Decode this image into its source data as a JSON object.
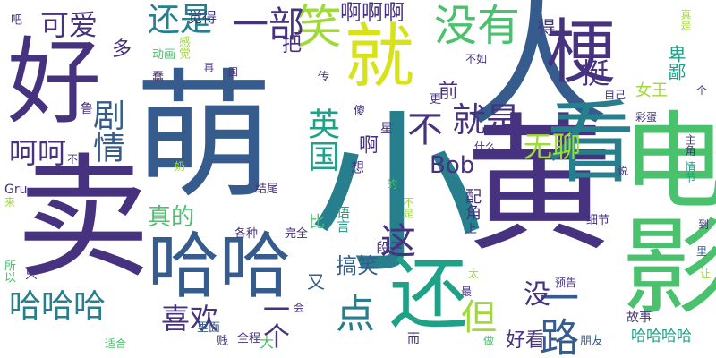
{
  "palette": {
    "p1": "#440154",
    "p2": "#46327e",
    "p3": "#365c8d",
    "p4": "#277f8e",
    "p5": "#1fa187",
    "p6": "#4ac16d",
    "p7": "#a0da39",
    "p8": "#d8e219"
  },
  "words": [
    {
      "text": "萌",
      "color": "#365c8d"
    },
    {
      "text": "小",
      "color": "#277f8e"
    },
    {
      "text": "黄",
      "color": "#46327e"
    },
    {
      "text": "人",
      "color": "#365c8d"
    },
    {
      "text": "卖",
      "color": "#46327e"
    },
    {
      "text": "好",
      "color": "#46327e"
    },
    {
      "text": "就",
      "color": "#d8e219"
    },
    {
      "text": "看",
      "color": "#277f8e"
    },
    {
      "text": "电影",
      "color": "#4ac16d"
    },
    {
      "text": "哈哈",
      "color": "#365c8d"
    },
    {
      "text": "还",
      "color": "#1fa187"
    },
    {
      "text": "梗",
      "color": "#46327e"
    },
    {
      "text": "笑",
      "color": "#a0da39"
    },
    {
      "text": "没有",
      "color": "#4ac16d"
    },
    {
      "text": "一部",
      "color": "#46327e"
    },
    {
      "text": "还是",
      "color": "#277f8e"
    },
    {
      "text": "可爱",
      "color": "#46327e"
    },
    {
      "text": "啊啊啊",
      "color": "#46327e"
    },
    {
      "text": "真是",
      "color": "#a0da39"
    },
    {
      "text": "剧情",
      "color": "#365c8d"
    },
    {
      "text": "呵呵",
      "color": "#46327e"
    },
    {
      "text": "就是",
      "color": "#46327e"
    },
    {
      "text": "英国",
      "color": "#1fa187"
    },
    {
      "text": "不",
      "color": "#46327e"
    },
    {
      "text": "挺",
      "color": "#46327e"
    },
    {
      "text": "卑鄙",
      "color": "#1fa187"
    },
    {
      "text": "Bob",
      "color": "#46327e"
    },
    {
      "text": "无聊",
      "color": "#a0da39"
    },
    {
      "text": "哈哈哈",
      "color": "#277f8e"
    },
    {
      "text": "喜欢",
      "color": "#46327e"
    },
    {
      "text": "一个",
      "color": "#46327e"
    },
    {
      "text": "点",
      "color": "#277f8e"
    },
    {
      "text": "但",
      "color": "#a0da39"
    },
    {
      "text": "一路",
      "color": "#365c8d"
    },
    {
      "text": "没",
      "color": "#46327e"
    },
    {
      "text": "这",
      "color": "#46327e"
    },
    {
      "text": "真的",
      "color": "#4ac16d"
    },
    {
      "text": "搞笑",
      "color": "#365c8d"
    },
    {
      "text": "好看",
      "color": "#46327e"
    },
    {
      "text": "哈哈哈哈",
      "color": "#1fa187"
    },
    {
      "text": "多",
      "color": "#46327e"
    },
    {
      "text": "把",
      "color": "#46327e"
    },
    {
      "text": "前",
      "color": "#46327e"
    },
    {
      "text": "得",
      "color": "#46327e"
    },
    {
      "text": "女王",
      "color": "#a0da39"
    },
    {
      "text": "觉得",
      "color": "#46327e"
    },
    {
      "text": "啊",
      "color": "#46327e"
    },
    {
      "text": "又",
      "color": "#365c8d"
    },
    {
      "text": "比",
      "color": "#4ac16d"
    },
    {
      "text": "配角",
      "color": "#46327e"
    },
    {
      "text": "语言",
      "color": "#1fa187"
    },
    {
      "text": "段子",
      "color": "#46327e"
    },
    {
      "text": "动画",
      "color": "#4ac16d"
    },
    {
      "text": "感觉",
      "color": "#a0da39"
    },
    {
      "text": "各种",
      "color": "#46327e"
    },
    {
      "text": "完全",
      "color": "#46327e"
    },
    {
      "text": "结尾",
      "color": "#46327e"
    },
    {
      "text": "里面",
      "color": "#365c8d"
    },
    {
      "text": "全程",
      "color": "#46327e"
    },
    {
      "text": "朋友",
      "color": "#365c8d"
    },
    {
      "text": "故事",
      "color": "#46327e"
    },
    {
      "text": "细节",
      "color": "#46327e"
    },
    {
      "text": "预告",
      "color": "#46327e"
    },
    {
      "text": "彩蛋",
      "color": "#46327e"
    },
    {
      "text": "什么",
      "color": "#46327e"
    },
    {
      "text": "自己",
      "color": "#46327e"
    },
    {
      "text": "不如",
      "color": "#46327e"
    },
    {
      "text": "傻",
      "color": "#46327e"
    },
    {
      "text": "星",
      "color": "#46327e"
    },
    {
      "text": "传",
      "color": "#46327e"
    },
    {
      "text": "鲁",
      "color": "#46327e"
    },
    {
      "text": "Gru",
      "color": "#46327e"
    },
    {
      "text": "所以",
      "color": "#4ac16d"
    },
    {
      "text": "只",
      "color": "#46327e"
    },
    {
      "text": "来",
      "color": "#a0da39"
    },
    {
      "text": "吧",
      "color": "#46327e"
    },
    {
      "text": "个",
      "color": "#46327e"
    },
    {
      "text": "说",
      "color": "#46327e"
    },
    {
      "text": "到",
      "color": "#46327e"
    },
    {
      "text": "里",
      "color": "#365c8d"
    },
    {
      "text": "让",
      "color": "#a0da39"
    },
    {
      "text": "上",
      "color": "#46327e"
    },
    {
      "text": "更",
      "color": "#46327e"
    },
    {
      "text": "想",
      "color": "#46327e"
    },
    {
      "text": "太",
      "color": "#a0da39"
    },
    {
      "text": "最",
      "color": "#46327e"
    },
    {
      "text": "而",
      "color": "#46327e"
    },
    {
      "text": "大",
      "color": "#4ac16d"
    },
    {
      "text": "贱",
      "color": "#46327e"
    },
    {
      "text": "适合",
      "color": "#4ac16d"
    },
    {
      "text": "奶",
      "color": "#a0da39"
    },
    {
      "text": "不过",
      "color": "#46327e"
    },
    {
      "text": "蠢",
      "color": "#46327e"
    },
    {
      "text": "情节",
      "color": "#1fa187"
    },
    {
      "text": "主角",
      "color": "#46327e"
    },
    {
      "text": "的",
      "color": "#4ac16d"
    },
    {
      "text": "不是",
      "color": "#a0da39"
    },
    {
      "text": "做",
      "color": "#4ac16d"
    },
    {
      "text": "会",
      "color": "#46327e"
    },
    {
      "text": "再",
      "color": "#46327e"
    },
    {
      "text": "国",
      "color": "#46327e"
    }
  ]
}
